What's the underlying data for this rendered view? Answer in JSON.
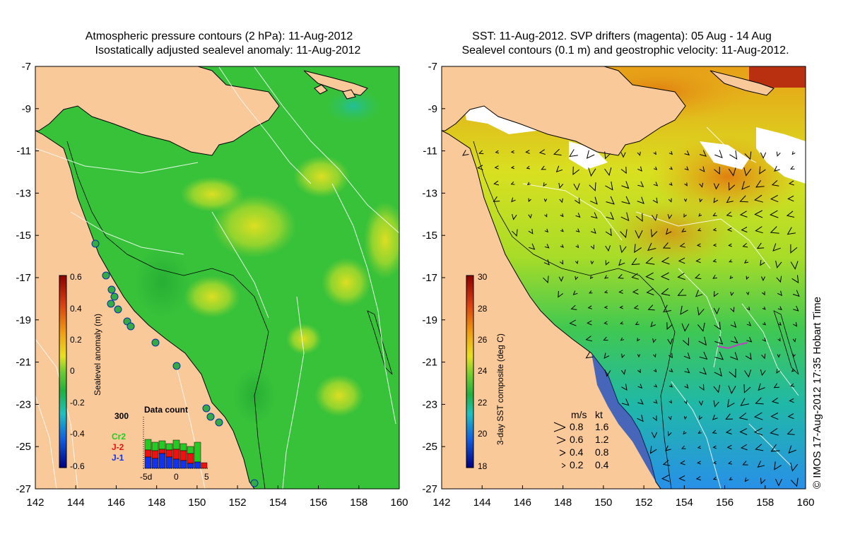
{
  "left_panel": {
    "title_line1": "Atmospheric pressure contours (2 hPa): 11-Aug-2012",
    "title_line2": "Isostatically adjusted sealevel anomaly: 11-Aug-2012",
    "colorbar_label": "Sealevel anomaly (m)",
    "colorbar_ticks": [
      "0.6",
      "0.4",
      "0.2",
      "0",
      "-0.2",
      "-0.4",
      "-0.6"
    ],
    "data_count": {
      "title": "Data count",
      "max_label": "300",
      "series": [
        {
          "name": "Cr2",
          "color": "#22cc22"
        },
        {
          "name": "J-2",
          "color": "#ee1111"
        },
        {
          "name": "J-1",
          "color": "#1133ee"
        }
      ],
      "x_labels": [
        "-5d",
        "0",
        "5"
      ]
    }
  },
  "right_panel": {
    "title_line1": "SST: 11-Aug-2012. SVP drifters (magenta): 05 Aug - 14 Aug",
    "title_line2": "Sealevel contours (0.1 m) and geostrophic velocity: 11-Aug-2012.",
    "colorbar_label": "3-day SST composite (deg C)",
    "colorbar_ticks": [
      "30",
      "28",
      "26",
      "24",
      "22",
      "20",
      "18"
    ],
    "velocity_legend": {
      "header_ms": "m/s",
      "header_kt": "kt",
      "rows": [
        {
          "ms": "0.8",
          "kt": "1.6"
        },
        {
          "ms": "0.6",
          "kt": "1.2"
        },
        {
          "ms": "0.4",
          "kt": "0.8"
        },
        {
          "ms": "0.2",
          "kt": "0.4"
        }
      ]
    }
  },
  "axes": {
    "lat_labels": [
      "-7",
      "-9",
      "-11",
      "-13",
      "-15",
      "-17",
      "-19",
      "-21",
      "-23",
      "-25",
      "-27"
    ],
    "lon_labels": [
      "142",
      "144",
      "146",
      "148",
      "150",
      "152",
      "154",
      "156",
      "158",
      "160"
    ]
  },
  "credit": "© IMOS 17-Aug-2012 17:35 Hobart Time",
  "colors": {
    "land": "#f9c99a",
    "sla_base": "#38c23a",
    "sst_base": "#e6e61e",
    "cloud": "#ffffff"
  }
}
